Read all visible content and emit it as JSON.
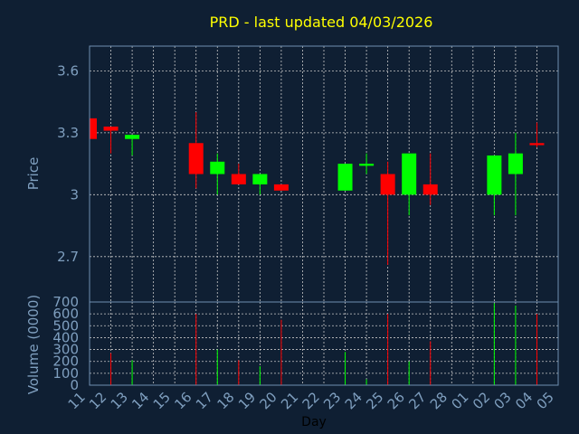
{
  "chart_data": {
    "type": "candlestick",
    "title": "PRD - last updated 04/03/2026",
    "xlabel": "Day",
    "price_panel": {
      "ylabel": "Price",
      "ylim": [
        2.48,
        3.72
      ],
      "yticks": [
        "2.7",
        "3",
        "3.3",
        "3.6"
      ],
      "grid": true
    },
    "volume_panel": {
      "ylabel": "Volume (0000)",
      "ylim": [
        0,
        700
      ],
      "yticks": [
        "0",
        "100",
        "200",
        "300",
        "400",
        "500",
        "600",
        "700"
      ],
      "grid": true
    },
    "x_ticks": [
      "11",
      "12",
      "13",
      "14",
      "15",
      "16",
      "17",
      "18",
      "19",
      "20",
      "21",
      "22",
      "23",
      "24",
      "25",
      "26",
      "27",
      "28",
      "01",
      "02",
      "03",
      "04",
      "05"
    ],
    "up_color": "#00ff00",
    "down_color": "#ff0000",
    "candles": [
      {
        "day": "11",
        "open": 3.37,
        "high": 3.38,
        "low": 3.27,
        "close": 3.27,
        "volume": 0
      },
      {
        "day": "12",
        "open": 3.33,
        "high": 3.33,
        "low": 3.2,
        "close": 3.31,
        "volume": 270
      },
      {
        "day": "13",
        "open": 3.27,
        "high": 3.29,
        "low": 3.19,
        "close": 3.29,
        "volume": 210
      },
      {
        "day": "16",
        "open": 3.25,
        "high": 3.4,
        "low": 3.03,
        "close": 3.1,
        "volume": 600
      },
      {
        "day": "17",
        "open": 3.1,
        "high": 3.2,
        "low": 3.0,
        "close": 3.16,
        "volume": 300
      },
      {
        "day": "18",
        "open": 3.1,
        "high": 3.15,
        "low": 3.05,
        "close": 3.05,
        "volume": 210
      },
      {
        "day": "19",
        "open": 3.05,
        "high": 3.1,
        "low": 3.0,
        "close": 3.1,
        "volume": 160
      },
      {
        "day": "20",
        "open": 3.05,
        "high": 3.05,
        "low": 3.02,
        "close": 3.02,
        "volume": 550
      },
      {
        "day": "23",
        "open": 3.02,
        "high": 3.15,
        "low": 3.02,
        "close": 3.15,
        "volume": 280
      },
      {
        "day": "24",
        "open": 3.14,
        "high": 3.2,
        "low": 3.1,
        "close": 3.15,
        "volume": 50
      },
      {
        "day": "25",
        "open": 3.1,
        "high": 3.16,
        "low": 2.66,
        "close": 3.0,
        "volume": 600
      },
      {
        "day": "26",
        "open": 3.0,
        "high": 3.2,
        "low": 2.9,
        "close": 3.2,
        "volume": 200
      },
      {
        "day": "27",
        "open": 3.05,
        "high": 3.2,
        "low": 2.95,
        "close": 3.0,
        "volume": 370
      },
      {
        "day": "02",
        "open": 3.0,
        "high": 3.19,
        "low": 2.9,
        "close": 3.19,
        "volume": 690
      },
      {
        "day": "03",
        "open": 3.1,
        "high": 3.3,
        "low": 2.9,
        "close": 3.2,
        "volume": 670
      },
      {
        "day": "04",
        "open": 3.25,
        "high": 3.35,
        "low": 3.23,
        "close": 3.24,
        "volume": 600
      }
    ]
  }
}
